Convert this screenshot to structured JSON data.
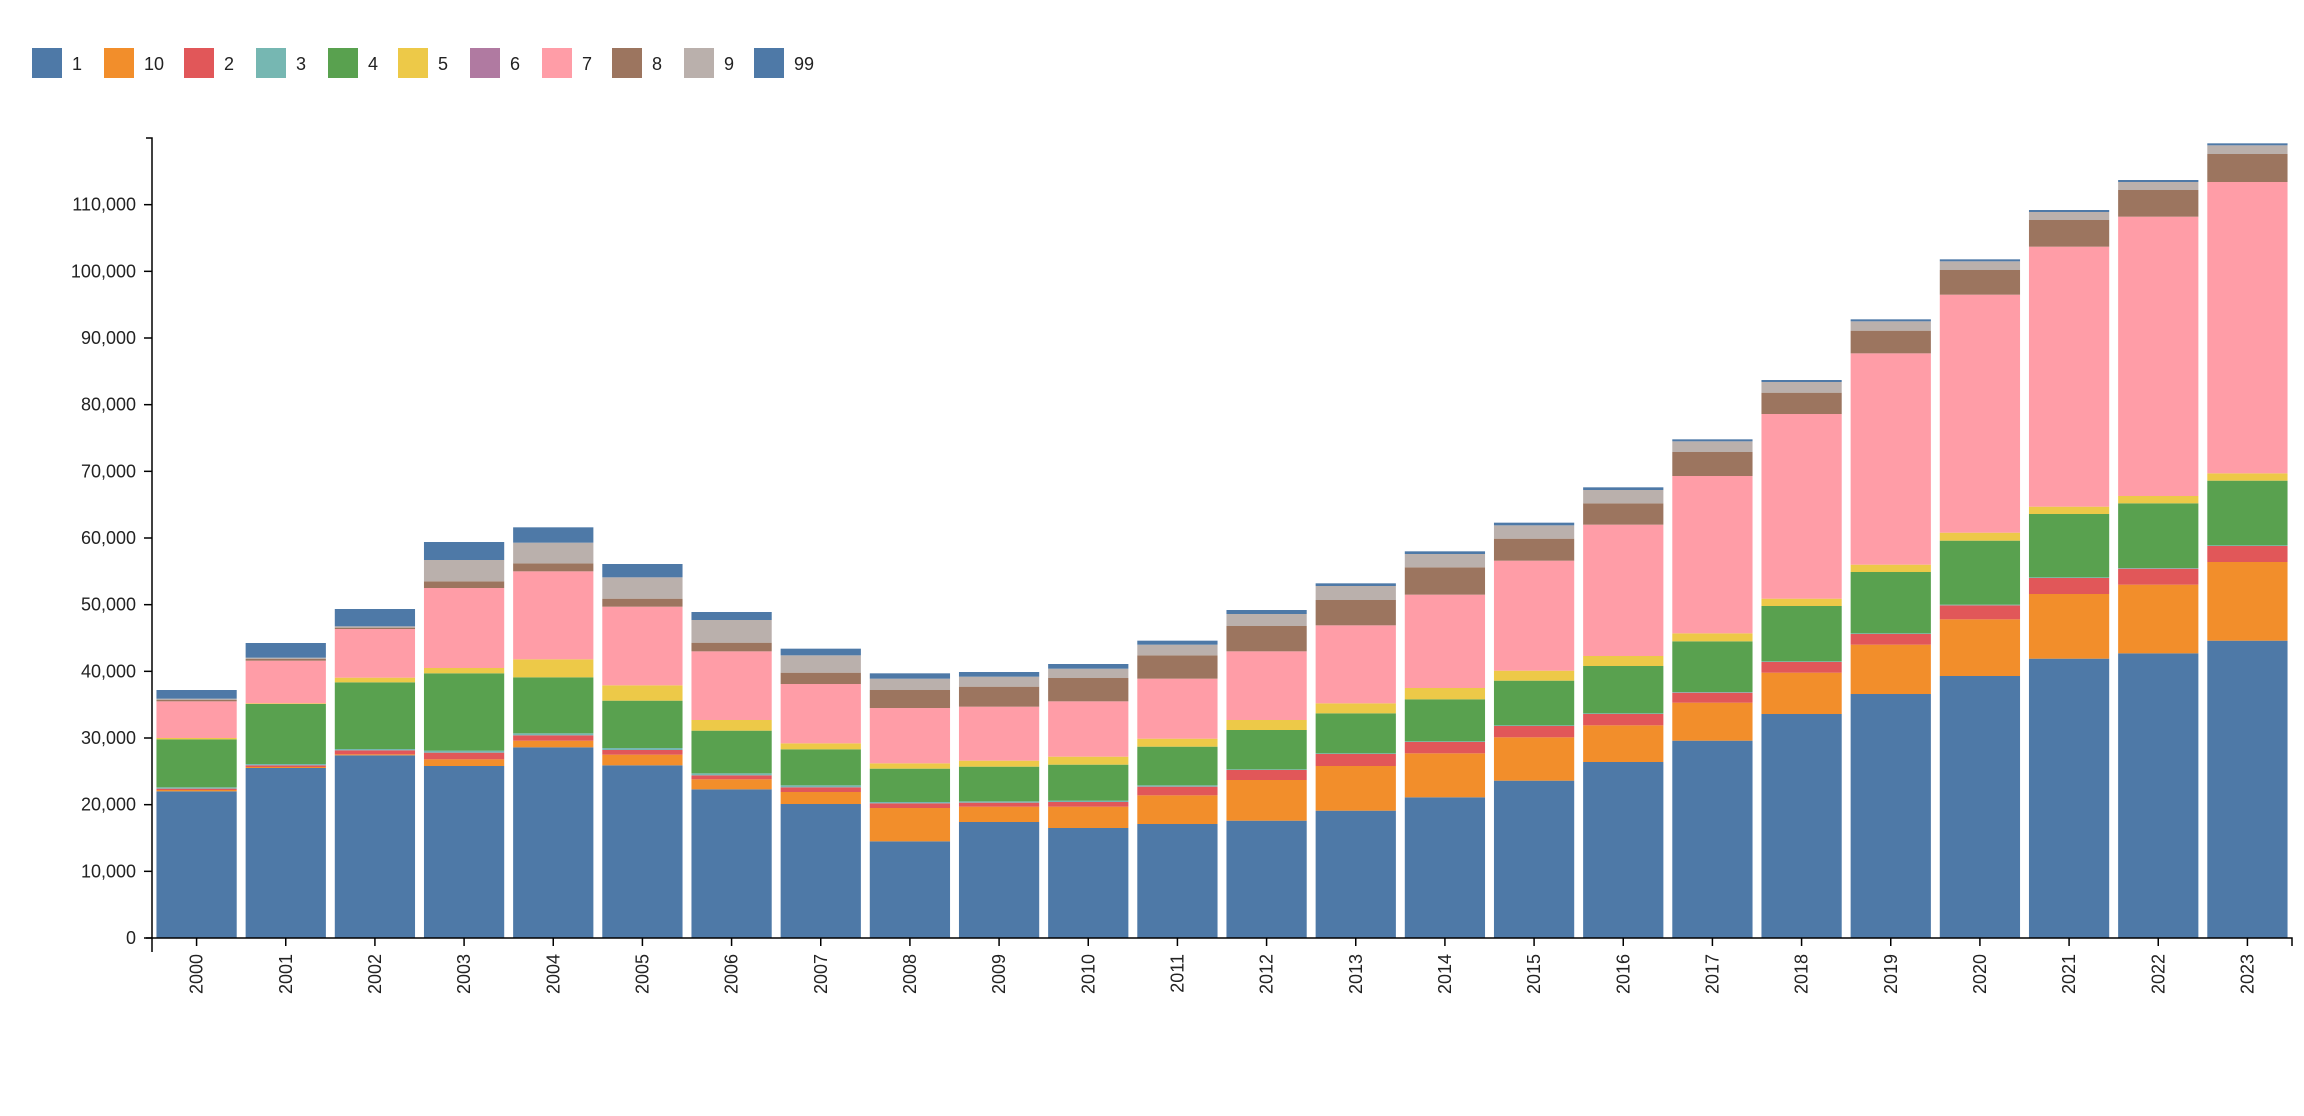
{
  "chart_data": {
    "type": "bar",
    "stacked": true,
    "title": "",
    "xlabel": "",
    "ylabel": "",
    "ylim": [
      0,
      120000
    ],
    "yticks": [
      0,
      10000,
      20000,
      30000,
      40000,
      50000,
      60000,
      70000,
      80000,
      90000,
      100000,
      110000
    ],
    "ytick_labels": [
      "0",
      "10,000",
      "20,000",
      "30,000",
      "40,000",
      "50,000",
      "60,000",
      "70,000",
      "80,000",
      "90,000",
      "100,000",
      "110,000"
    ],
    "legend_position": "top-left",
    "grid": false,
    "categories": [
      "2000",
      "2001",
      "2002",
      "2003",
      "2004",
      "2005",
      "2006",
      "2007",
      "2008",
      "2009",
      "2010",
      "2011",
      "2012",
      "2013",
      "2014",
      "2015",
      "2016",
      "2017",
      "2018",
      "2019",
      "2020",
      "2021",
      "2022",
      "2023"
    ],
    "series": [
      {
        "name": "1",
        "color": "#4e79a7",
        "values": [
          22000,
          25500,
          27400,
          25800,
          28600,
          25900,
          22300,
          20100,
          14500,
          17400,
          16500,
          17100,
          17600,
          19100,
          21100,
          23600,
          26400,
          29600,
          33600,
          36600,
          39300,
          41900,
          42700,
          44600
        ]
      },
      {
        "name": "10",
        "color": "#f28e2b",
        "values": [
          200,
          150,
          150,
          1000,
          1000,
          1600,
          1500,
          1800,
          5000,
          2300,
          3200,
          4300,
          6100,
          6700,
          6600,
          6500,
          5500,
          5700,
          6200,
          7400,
          8500,
          9700,
          10300,
          11800
        ]
      },
      {
        "name": "2",
        "color": "#e15759",
        "values": [
          200,
          250,
          600,
          1000,
          800,
          700,
          600,
          700,
          700,
          600,
          700,
          1300,
          1500,
          1800,
          1700,
          1700,
          1700,
          1500,
          1600,
          1600,
          2100,
          2400,
          2400,
          2400
        ]
      },
      {
        "name": "3",
        "color": "#76b7b2",
        "values": [
          200,
          200,
          200,
          300,
          300,
          300,
          300,
          300,
          200,
          200,
          200,
          200,
          100,
          100,
          100,
          100,
          100,
          100,
          100,
          100,
          100,
          100,
          100,
          100
        ]
      },
      {
        "name": "4",
        "color": "#59a14f",
        "values": [
          7200,
          9000,
          10000,
          11600,
          8400,
          7100,
          6400,
          5400,
          5000,
          5200,
          5400,
          5800,
          5900,
          6000,
          6300,
          6700,
          7100,
          7600,
          8300,
          9200,
          9600,
          9500,
          9700,
          9700
        ]
      },
      {
        "name": "5",
        "color": "#edc948",
        "values": [
          200,
          100,
          700,
          800,
          2700,
          2300,
          1600,
          900,
          800,
          900,
          1200,
          1200,
          1500,
          1500,
          1700,
          1500,
          1500,
          1200,
          1100,
          1100,
          1200,
          1100,
          1100,
          1100
        ]
      },
      {
        "name": "6",
        "color": "#b07aa1",
        "values": [
          0,
          0,
          0,
          0,
          0,
          0,
          0,
          0,
          0,
          0,
          0,
          0,
          0,
          0,
          0,
          0,
          0,
          0,
          0,
          0,
          0,
          0,
          0,
          0
        ]
      },
      {
        "name": "7",
        "color": "#ff9da7",
        "values": [
          5500,
          6400,
          7300,
          12000,
          13200,
          11800,
          10300,
          8900,
          8300,
          8100,
          8300,
          9000,
          10300,
          11700,
          14000,
          16500,
          19700,
          23600,
          27700,
          31700,
          35700,
          39000,
          41900,
          43700
        ]
      },
      {
        "name": "8",
        "color": "#9c755f",
        "values": [
          200,
          250,
          200,
          1000,
          1200,
          1200,
          1300,
          1700,
          2700,
          3000,
          3500,
          3500,
          3800,
          3800,
          4100,
          3300,
          3200,
          3600,
          3200,
          3400,
          3700,
          4000,
          4000,
          4200
        ]
      },
      {
        "name": "9",
        "color": "#bab0ac",
        "values": [
          200,
          200,
          200,
          3200,
          3100,
          3200,
          3400,
          2600,
          1700,
          1500,
          1400,
          1600,
          1800,
          2100,
          2000,
          2000,
          2000,
          1600,
          1600,
          1400,
          1300,
          1200,
          1200,
          1300
        ]
      },
      {
        "name": "99",
        "color": "#4e79a7",
        "values": [
          1300,
          2200,
          2600,
          2700,
          2300,
          2000,
          1200,
          1000,
          800,
          700,
          700,
          600,
          600,
          400,
          400,
          400,
          400,
          300,
          300,
          300,
          300,
          300,
          300,
          300
        ]
      }
    ]
  }
}
